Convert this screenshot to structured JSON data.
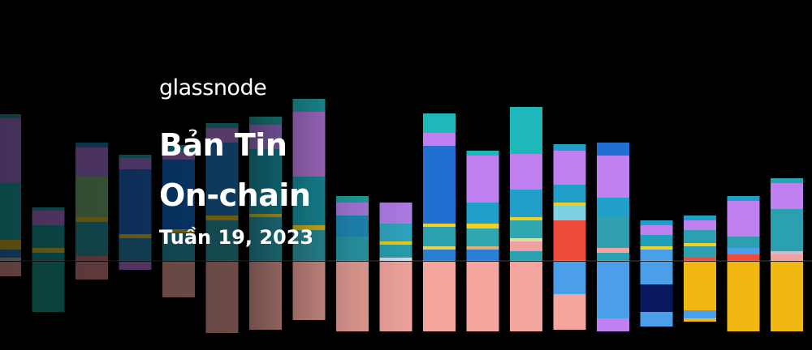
{
  "brand": {
    "logo_text": "glassnode"
  },
  "banner": {
    "title_line1": "Bản Tin",
    "title_line2": "On-chain",
    "subtitle": "Tuần 19, 2023"
  },
  "colors": {
    "background": "#000000",
    "text": "#ffffff"
  },
  "decor_bars": [
    {
      "up": [
        [
          "#2a9fa8",
          5
        ],
        [
          "#b07fe8",
          80
        ],
        [
          "#1fb5b5",
          70
        ],
        [
          "#e0c020",
          12
        ],
        [
          "#2a7fd0",
          10
        ],
        [
          "#c0c0c0",
          4
        ]
      ],
      "down": [
        [
          "#f3a39b",
          18
        ]
      ]
    },
    {
      "up": [
        [
          "#20a9b0",
          4
        ],
        [
          "#c07ee8",
          18
        ],
        [
          "#1fa6a8",
          28
        ],
        [
          "#eed42a",
          6
        ],
        [
          "#16a0a0",
          10
        ]
      ],
      "down": [
        [
          "#1fa69a",
          62
        ]
      ]
    },
    {
      "up": [
        [
          "#207fc0",
          6
        ],
        [
          "#b47ce8",
          36
        ],
        [
          "#7dc080",
          50
        ],
        [
          "#e8c820",
          6
        ],
        [
          "#2aa0b0",
          42
        ],
        [
          "#d87a80",
          6
        ]
      ],
      "down": [
        [
          "#e88a8e",
          22
        ]
      ]
    },
    {
      "up": [
        [
          "#1fa8b0",
          4
        ],
        [
          "#b07ce8",
          14
        ],
        [
          "#1f6fd0",
          80
        ],
        [
          "#f0d020",
          5
        ],
        [
          "#2a90c0",
          28
        ]
      ],
      "down": [
        [
          "#c07ce8",
          10
        ]
      ]
    },
    {
      "up": [
        [
          "#1fb0b5",
          8
        ],
        [
          "#c080e8",
          10
        ],
        [
          "#1070d8",
          86
        ],
        [
          "#f0d020",
          4
        ],
        [
          "#28a0b8",
          35
        ]
      ],
      "down": [
        [
          "#f2a89e",
          44
        ]
      ]
    },
    {
      "up": [
        [
          "#1fa6b0",
          6
        ],
        [
          "#c080e8",
          18
        ],
        [
          "#1f80d0",
          90
        ],
        [
          "#f0d020",
          6
        ],
        [
          "#30a0b0",
          50
        ]
      ],
      "down": [
        [
          "#f0a69e",
          88
        ]
      ]
    },
    {
      "up": [
        [
          "#1fa6a0",
          10
        ],
        [
          "#b080e8",
          30
        ],
        [
          "#1a9ab0",
          80
        ],
        [
          "#f0d020",
          4
        ],
        [
          "#2aa0b0",
          54
        ]
      ],
      "down": [
        [
          "#f0a69e",
          84
        ]
      ]
    },
    {
      "up": [
        [
          "#20a8b0",
          16
        ],
        [
          "#c07fe8",
          80
        ],
        [
          "#1a9fb0",
          60
        ],
        [
          "#f0d020",
          6
        ],
        [
          "#30a0b0",
          38
        ]
      ],
      "down": [
        [
          "#f2a69e",
          72
        ]
      ]
    },
    {
      "up": [
        [
          "#20a8a8",
          8
        ],
        [
          "#b07fe8",
          16
        ],
        [
          "#1f90c0",
          26
        ],
        [
          "#2a9fb0",
          30
        ]
      ],
      "down": [
        [
          "#f2a69e",
          86
        ]
      ]
    },
    {
      "up": [
        [
          "#b07ee8",
          26
        ],
        [
          "#30a6c0",
          22
        ],
        [
          "#e8d020",
          4
        ],
        [
          "#2aa0b0",
          16
        ],
        [
          "#d0e0f0",
          4
        ]
      ],
      "down": [
        [
          "#f2a69e",
          86
        ]
      ]
    },
    {
      "up": [
        [
          "#1fb8b8",
          24
        ],
        [
          "#c080f0",
          16
        ],
        [
          "#1f70d0",
          96
        ],
        [
          "#f0d020",
          4
        ],
        [
          "#2aa0b0",
          24
        ],
        [
          "#e8d050",
          4
        ],
        [
          "#2a7fd0",
          14
        ]
      ],
      "down": [
        [
          "#f4a69e",
          86
        ]
      ]
    },
    {
      "up": [
        [
          "#1fb8b8",
          6
        ],
        [
          "#c080f0",
          58
        ],
        [
          "#20a0c8",
          26
        ],
        [
          "#f0d020",
          6
        ],
        [
          "#30a6b0",
          22
        ],
        [
          "#e0b070",
          4
        ],
        [
          "#2a80d8",
          14
        ]
      ],
      "down": [
        [
          "#f4a69e",
          86
        ]
      ]
    },
    {
      "up": [
        [
          "#1fb8b8",
          58
        ],
        [
          "#c080f0",
          44
        ],
        [
          "#20a0c8",
          34
        ],
        [
          "#f0d020",
          4
        ],
        [
          "#30a6b0",
          22
        ],
        [
          "#d0e0a0",
          4
        ],
        [
          "#f0a0a0",
          12
        ],
        [
          "#2aa0b0",
          12
        ]
      ],
      "down": [
        [
          "#f4a69e",
          86
        ]
      ]
    },
    {
      "up": [
        [
          "#20a0c8",
          8
        ],
        [
          "#c080f0",
          42
        ],
        [
          "#1f9fc8",
          22
        ],
        [
          "#e8d020",
          4
        ],
        [
          "#7fd0e0",
          18
        ],
        [
          "#f04a3a",
          50
        ]
      ],
      "down": [
        [
          "#4a9fe8",
          40
        ],
        [
          "#f4a69e",
          44
        ]
      ]
    },
    {
      "up": [
        [
          "#1f70d0",
          16
        ],
        [
          "#c080f0",
          52
        ],
        [
          "#20a0c8",
          24
        ],
        [
          "#30a0b0",
          38
        ],
        [
          "#f0a69e",
          6
        ],
        [
          "#2aa0b0",
          10
        ]
      ],
      "down": [
        [
          "#4a9fe8",
          70
        ],
        [
          "#c080f0",
          16
        ]
      ]
    },
    {
      "up": [
        [
          "#20a0c8",
          6
        ],
        [
          "#c080f0",
          12
        ],
        [
          "#1f9fb8",
          14
        ],
        [
          "#f0d020",
          4
        ],
        [
          "#4aa0e8",
          14
        ]
      ],
      "down": [
        [
          "#4a9fe8",
          28
        ],
        [
          "#0a1a60",
          34
        ],
        [
          "#4a9fe8",
          18
        ]
      ]
    },
    {
      "up": [
        [
          "#20a0c8",
          6
        ],
        [
          "#c080f0",
          12
        ],
        [
          "#2aa0b0",
          16
        ],
        [
          "#f0d020",
          4
        ],
        [
          "#30a0b0",
          14
        ],
        [
          "#f04a3a",
          4
        ]
      ],
      "down": [
        [
          "#f0b810",
          60
        ],
        [
          "#4a9fe8",
          10
        ],
        [
          "#f0b810",
          4
        ]
      ]
    },
    {
      "up": [
        [
          "#20a0c8",
          6
        ],
        [
          "#c080f0",
          44
        ],
        [
          "#2aa0b0",
          14
        ],
        [
          "#4a9fe8",
          8
        ],
        [
          "#f04a3a",
          8
        ]
      ],
      "down": [
        [
          "#f0b810",
          86
        ]
      ]
    },
    {
      "up": [
        [
          "#20a8b0",
          6
        ],
        [
          "#c080f0",
          32
        ],
        [
          "#2aa0b0",
          52
        ],
        [
          "#c0c0d0",
          4
        ],
        [
          "#f0a0a0",
          8
        ]
      ],
      "down": [
        [
          "#f0b810",
          86
        ]
      ]
    }
  ]
}
